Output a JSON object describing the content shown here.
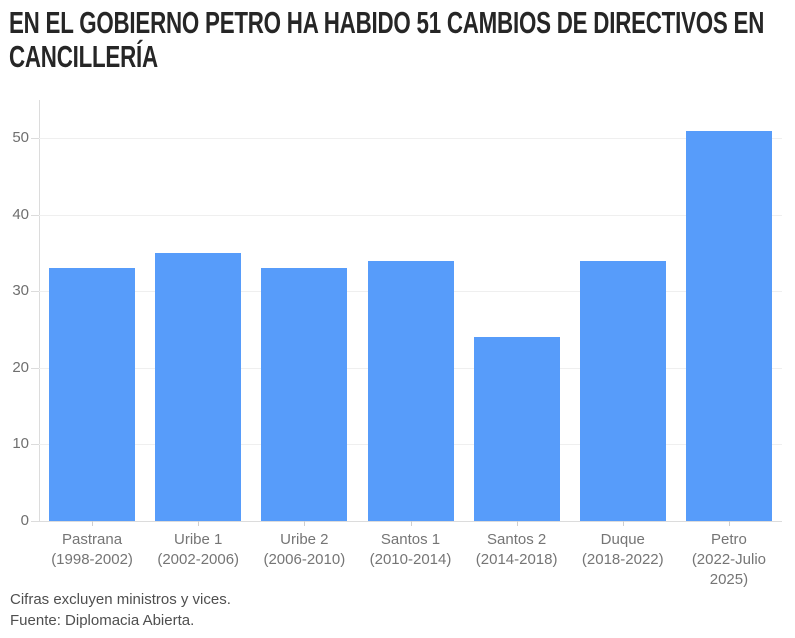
{
  "title": {
    "lines": [
      "EN EL GOBIERNO PETRO HA HABIDO 51 CAMBIOS DE DIRECTIVOS EN",
      "CANCILLERÍA"
    ],
    "full": "EN EL GOBIERNO PETRO HA HABIDO 51 CAMBIOS DE DIRECTIVOS EN CANCILLERÍA"
  },
  "colors": {
    "bar": "#579CFA",
    "title": "#262626",
    "axis_label": "#757575",
    "gridline": "#efefef",
    "axis_line": "#dcdcdc",
    "background": "#ffffff"
  },
  "chart_data": {
    "type": "bar",
    "categories": [
      "Pastrana\n(1998-2002)",
      "Uribe 1\n(2002-2006)",
      "Uribe 2\n(2006-2010)",
      "Santos 1\n(2010-2014)",
      "Santos 2\n(2014-2018)",
      "Duque\n(2018-2022)",
      "Petro\n(2022-Julio 2025)"
    ],
    "values": [
      33,
      35,
      33,
      34,
      24,
      34,
      51
    ],
    "y_ticks": [
      0,
      10,
      20,
      30,
      40,
      50
    ],
    "ylim": [
      0,
      55
    ],
    "grid": true,
    "legend": null,
    "xlabel": "",
    "ylabel": "",
    "title": "EN EL GOBIERNO PETRO HA HABIDO 51 CAMBIOS DE DIRECTIVOS EN CANCILLERÍA"
  },
  "footer": {
    "note": "Cifras excluyen ministros y vices.",
    "source": "Fuente: Diplomacia Abierta."
  }
}
